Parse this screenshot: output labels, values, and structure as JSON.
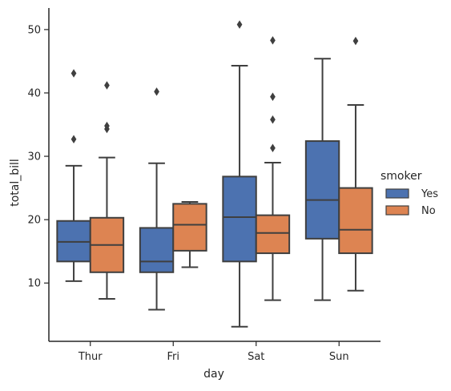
{
  "chart_data": {
    "type": "box",
    "title": "",
    "xlabel": "day",
    "ylabel": "total_bill",
    "categories": [
      "Thur",
      "Fri",
      "Sat",
      "Sun"
    ],
    "ylim": [
      0.8,
      53.4
    ],
    "yticks": [
      10,
      20,
      30,
      40,
      50
    ],
    "grid": false,
    "legend": {
      "title": "smoker",
      "position": "right"
    },
    "series": [
      {
        "name": "Yes",
        "color": "#4c72b0",
        "boxes": [
          {
            "whisker_low": 10.3,
            "q1": 13.4,
            "median": 16.5,
            "q3": 19.8,
            "whisker_high": 28.5,
            "outliers": [
              32.7,
              43.1
            ]
          },
          {
            "whisker_low": 5.8,
            "q1": 11.7,
            "median": 13.4,
            "q3": 18.7,
            "whisker_high": 28.9,
            "outliers": [
              40.2
            ]
          },
          {
            "whisker_low": 3.1,
            "q1": 13.4,
            "median": 20.4,
            "q3": 26.8,
            "whisker_high": 44.3,
            "outliers": [
              50.8
            ]
          },
          {
            "whisker_low": 7.3,
            "q1": 17.0,
            "median": 23.1,
            "q3": 32.4,
            "whisker_high": 45.4,
            "outliers": []
          }
        ]
      },
      {
        "name": "No",
        "color": "#dd8452",
        "boxes": [
          {
            "whisker_low": 7.5,
            "q1": 11.7,
            "median": 16.0,
            "q3": 20.3,
            "whisker_high": 29.8,
            "outliers": [
              34.3,
              34.8,
              41.2
            ]
          },
          {
            "whisker_low": 12.5,
            "q1": 15.1,
            "median": 19.2,
            "q3": 22.5,
            "whisker_high": 22.8,
            "outliers": []
          },
          {
            "whisker_low": 7.3,
            "q1": 14.7,
            "median": 17.9,
            "q3": 20.7,
            "whisker_high": 29.0,
            "outliers": [
              31.3,
              35.8,
              39.4,
              48.3
            ]
          },
          {
            "whisker_low": 8.8,
            "q1": 14.7,
            "median": 18.4,
            "q3": 25.0,
            "whisker_high": 38.1,
            "outliers": [
              48.2
            ]
          }
        ]
      }
    ]
  }
}
